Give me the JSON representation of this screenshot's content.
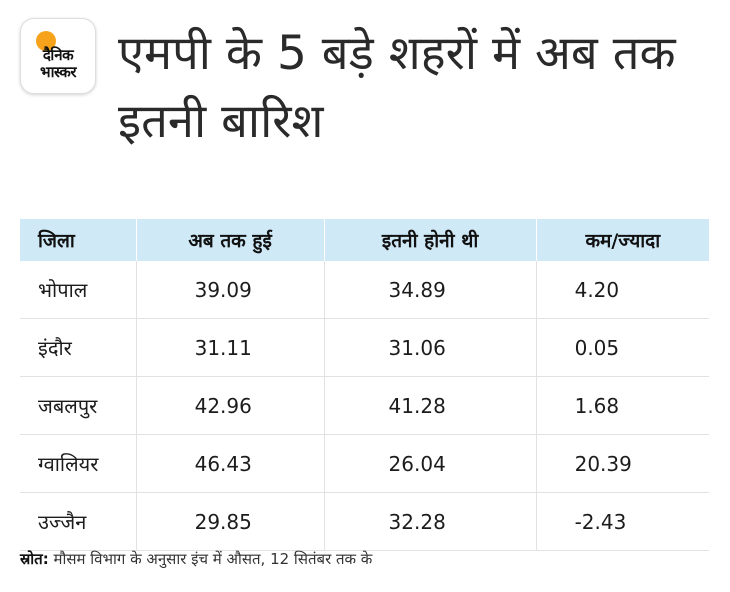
{
  "logo": {
    "line1": "दैनिक",
    "line2": "भास्कर",
    "accent_color": "#f7a21b"
  },
  "title": "एमपी के 5 बड़े शहरों में अब तक इतनी बारिश",
  "chart_data": {
    "type": "table",
    "title": "एमपी के 5 बड़े शहरों में अब तक इतनी बारिश",
    "columns": [
      "जिला",
      "अब तक हुई",
      "इतनी होनी थी",
      "कम/ज्यादा"
    ],
    "rows": [
      [
        "भोपाल",
        "39.09",
        "34.89",
        "4.20"
      ],
      [
        "इंदौर",
        "31.11",
        "31.06",
        "0.05"
      ],
      [
        "जबलपुर",
        "42.96",
        "41.28",
        "1.68"
      ],
      [
        "ग्वालियर",
        "46.43",
        "26.04",
        "20.39"
      ],
      [
        "उज्जैन",
        "29.85",
        "32.28",
        "-2.43"
      ]
    ],
    "header_color": "#cfe9f7"
  },
  "source": {
    "label": "स्रोत:",
    "text": " मौसम विभाग के अनुसार इंच में औसत, 12 सितंबर तक के"
  }
}
